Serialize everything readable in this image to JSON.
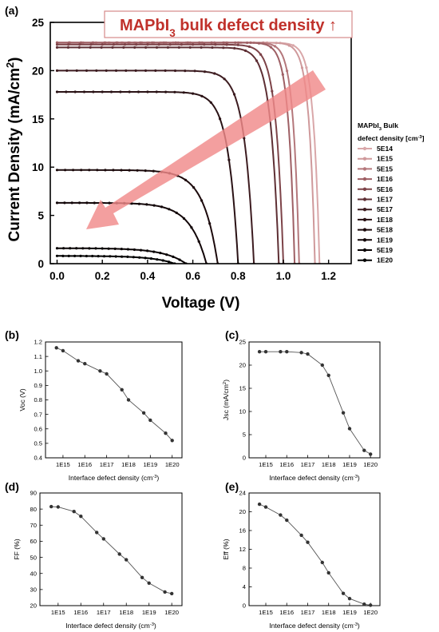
{
  "figure": {
    "panels": {
      "a": "(a)",
      "b": "(b)",
      "c": "(c)",
      "d": "(d)",
      "e": "(e)"
    }
  },
  "chart_data": [
    {
      "id": "a",
      "type": "line",
      "title": "",
      "xlabel": "Voltage (V)",
      "ylabel": "Current Density (mA/cm²)",
      "xlim": [
        -0.03,
        1.3
      ],
      "ylim": [
        0,
        25
      ],
      "xticks": [
        0.0,
        0.2,
        0.4,
        0.6,
        0.8,
        1.0,
        1.2
      ],
      "xtick_labels": [
        "0.0",
        "0.2",
        "0.4",
        "0.6",
        "0.8",
        "1.0",
        "1.2"
      ],
      "yticks": [
        0,
        5,
        10,
        15,
        20,
        25
      ],
      "ytick_labels": [
        "0",
        "5",
        "10",
        "15",
        "20",
        "25"
      ],
      "grid": false,
      "legend_position": "right",
      "legend_title": "MAPbI₃ Bulk defect density [cm⁻³]",
      "annotation": "MAPbI₃ bulk defect density ↑",
      "annotation_color": "#c0312b",
      "arrow_color": "#f08a8a",
      "series": [
        {
          "name": "5E14",
          "color": "#d9a7a9",
          "jsc": 22.9,
          "voc": 1.16,
          "ff": 81.5
        },
        {
          "name": "1E15",
          "color": "#cf999b",
          "jsc": 22.9,
          "voc": 1.14,
          "ff": 81.3
        },
        {
          "name": "5E15",
          "color": "#b4777b",
          "jsc": 22.9,
          "voc": 1.07,
          "ff": 78.5
        },
        {
          "name": "1E16",
          "color": "#9e5f64",
          "jsc": 22.9,
          "voc": 1.05,
          "ff": 75.5
        },
        {
          "name": "5E16",
          "color": "#7d4348",
          "jsc": 22.7,
          "voc": 1.0,
          "ff": 65.5
        },
        {
          "name": "1E17",
          "color": "#5e2f34",
          "jsc": 22.4,
          "voc": 0.98,
          "ff": 61.5
        },
        {
          "name": "5E17",
          "color": "#3d1c20",
          "jsc": 20.0,
          "voc": 0.87,
          "ff": 52.0
        },
        {
          "name": "1E18",
          "color": "#2a1215",
          "jsc": 17.8,
          "voc": 0.8,
          "ff": 48.5
        },
        {
          "name": "5E18",
          "color": "#1c0a0c",
          "jsc": 9.7,
          "voc": 0.71,
          "ff": 37.5
        },
        {
          "name": "1E19",
          "color": "#120608",
          "jsc": 6.3,
          "voc": 0.66,
          "ff": 34.0
        },
        {
          "name": "5E19",
          "color": "#080203",
          "jsc": 1.6,
          "voc": 0.57,
          "ff": 28.5
        },
        {
          "name": "1E20",
          "color": "#000000",
          "jsc": 0.8,
          "voc": 0.52,
          "ff": 27.5
        }
      ]
    },
    {
      "id": "b",
      "type": "line",
      "title": "",
      "xlabel": "Interface defect density (cm⁻³)",
      "ylabel": "Voc (V)",
      "x": [
        "5E14",
        "1E15",
        "5E15",
        "1E16",
        "5E16",
        "1E17",
        "5E17",
        "1E18",
        "5E18",
        "1E19",
        "5E19",
        "1E20"
      ],
      "xtick_labels": [
        "1E15",
        "1E16",
        "1E17",
        "1E18",
        "1E19",
        "1E20"
      ],
      "values": [
        1.16,
        1.14,
        1.07,
        1.05,
        1.0,
        0.98,
        0.87,
        0.8,
        0.71,
        0.66,
        0.57,
        0.52
      ],
      "ylim": [
        0.4,
        1.2
      ],
      "yticks": [
        0.4,
        0.5,
        0.6,
        0.7,
        0.8,
        0.9,
        1.0,
        1.1,
        1.2
      ],
      "ytick_labels": [
        "0.4",
        "0.5",
        "0.6",
        "0.7",
        "0.8",
        "0.9",
        "1.0",
        "1.1",
        "1.2"
      ]
    },
    {
      "id": "c",
      "type": "line",
      "title": "",
      "xlabel": "Interface defect density (cm⁻³)",
      "ylabel": "Jsc (mA/cm²)",
      "x": [
        "5E14",
        "1E15",
        "5E15",
        "1E16",
        "5E16",
        "1E17",
        "5E17",
        "1E18",
        "5E18",
        "1E19",
        "5E19",
        "1E20"
      ],
      "xtick_labels": [
        "1E15",
        "1E16",
        "1E17",
        "1E18",
        "1E19",
        "1E20"
      ],
      "values": [
        22.9,
        22.9,
        22.9,
        22.9,
        22.7,
        22.4,
        20.0,
        17.8,
        9.7,
        6.3,
        1.6,
        0.8
      ],
      "ylim": [
        0,
        25
      ],
      "yticks": [
        0,
        5,
        10,
        15,
        20,
        25
      ],
      "ytick_labels": [
        "0",
        "5",
        "10",
        "15",
        "20",
        "25"
      ]
    },
    {
      "id": "d",
      "type": "line",
      "title": "",
      "xlabel": "Interface defect density (cm⁻³)",
      "ylabel": "FF (%)",
      "x": [
        "5E14",
        "1E15",
        "5E15",
        "1E16",
        "5E16",
        "1E17",
        "5E17",
        "1E18",
        "5E18",
        "1E19",
        "5E19",
        "1E20"
      ],
      "xtick_labels": [
        "1E15",
        "1E16",
        "1E17",
        "1E18",
        "1E19",
        "1E20"
      ],
      "values": [
        81.5,
        81.3,
        78.5,
        75.5,
        65.5,
        61.5,
        52.0,
        48.5,
        37.5,
        34.0,
        28.5,
        27.5
      ],
      "ylim": [
        20,
        90
      ],
      "yticks": [
        20,
        30,
        40,
        50,
        60,
        70,
        80,
        90
      ],
      "ytick_labels": [
        "20",
        "30",
        "40",
        "50",
        "60",
        "70",
        "80",
        "90"
      ]
    },
    {
      "id": "e",
      "type": "line",
      "title": "",
      "xlabel": "Interface defect density (cm⁻³)",
      "ylabel": "Eff (%)",
      "x": [
        "5E14",
        "1E15",
        "5E15",
        "1E16",
        "5E16",
        "1E17",
        "5E17",
        "1E18",
        "5E18",
        "1E19",
        "5E19",
        "1E20"
      ],
      "xtick_labels": [
        "1E15",
        "1E16",
        "1E17",
        "1E18",
        "1E19",
        "1E20"
      ],
      "values": [
        21.6,
        21.0,
        19.3,
        18.2,
        15.0,
        13.5,
        9.2,
        7.0,
        2.6,
        1.5,
        0.3,
        0.1
      ],
      "ylim": [
        0,
        24
      ],
      "yticks": [
        0,
        4,
        8,
        12,
        16,
        20,
        24
      ],
      "ytick_labels": [
        "0",
        "4",
        "8",
        "12",
        "16",
        "20",
        "24"
      ]
    }
  ]
}
